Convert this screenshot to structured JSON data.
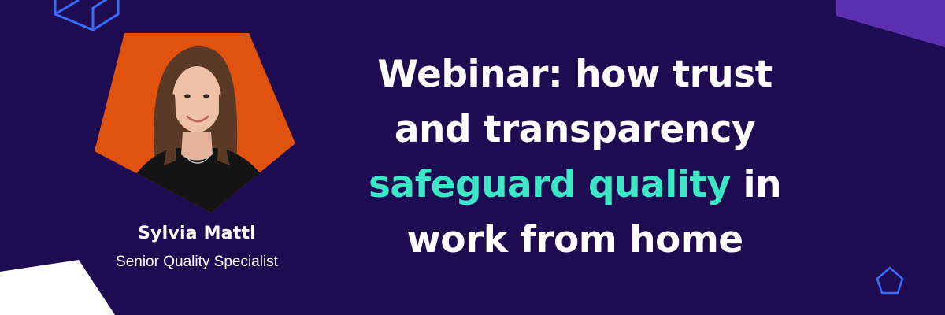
{
  "colors": {
    "background": "#1e0c52",
    "accent_text": "#3ee6c8",
    "portrait_bg": "#e2520f",
    "outline_shapes": "#3a6cff",
    "corner_purple": "#5b2fb0",
    "corner_white": "#ffffff"
  },
  "speaker": {
    "name": "Sylvia Mattl",
    "role": "Senior Quality Specialist"
  },
  "headline": {
    "line1": "Webinar: how trust",
    "line2": "and transparency",
    "line3_highlight": "safeguard quality",
    "line3_rest": " in",
    "line4": "work from home"
  }
}
